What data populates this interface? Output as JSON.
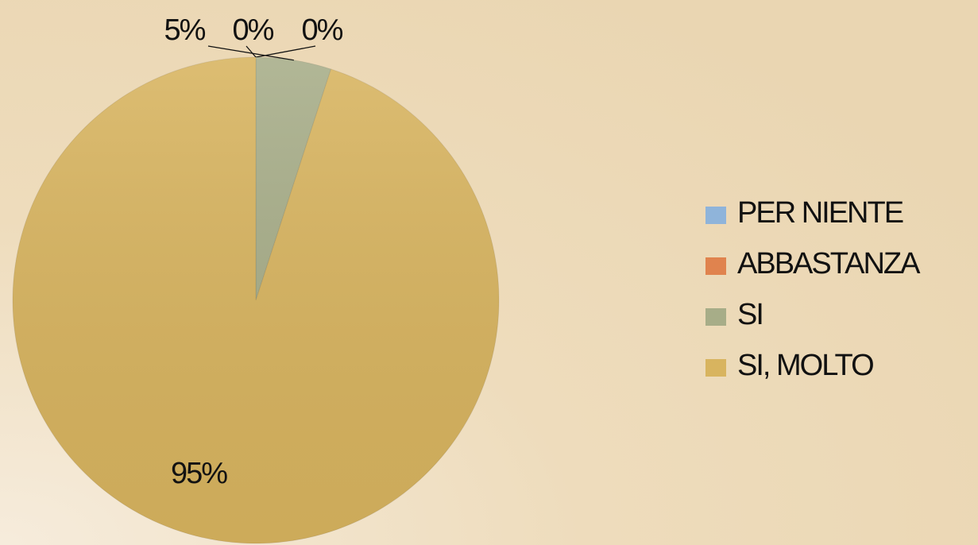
{
  "chart_data": {
    "type": "pie",
    "categories": [
      "PER NIENTE",
      "ABBASTANZA",
      "SI",
      "SI, MOLTO"
    ],
    "values": [
      0,
      0,
      5,
      95
    ],
    "value_labels": [
      "0%",
      "0%",
      "5%",
      "95%"
    ],
    "colors": [
      "#8fb4da",
      "#e0834e",
      "#a7ad88",
      "#d8b45f"
    ],
    "legend": "right"
  }
}
